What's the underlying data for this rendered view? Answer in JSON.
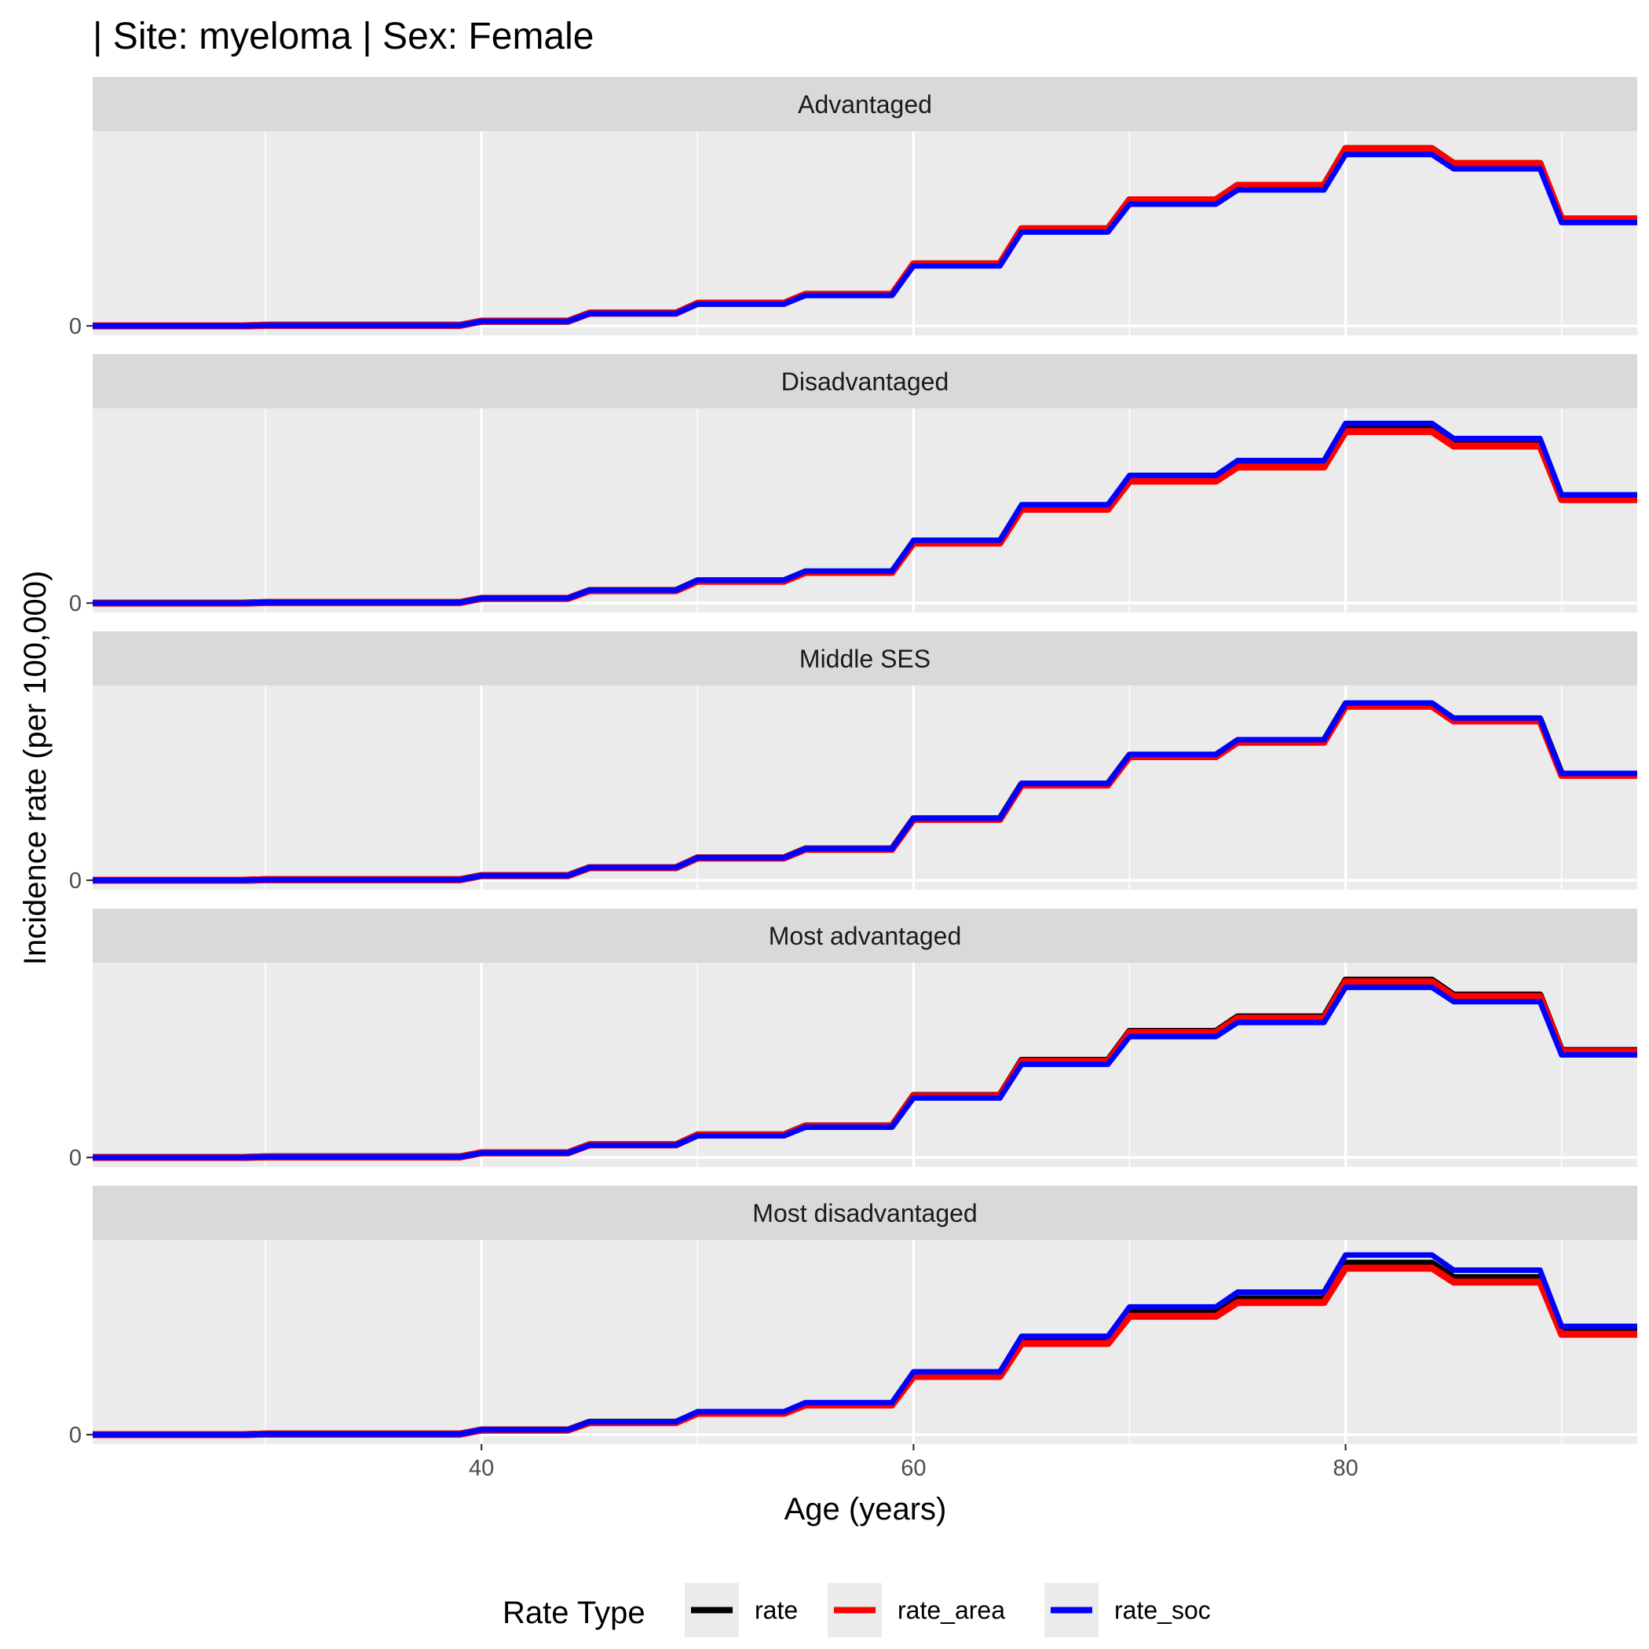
{
  "chart_data": {
    "type": "line",
    "title": "| Site: myeloma | Sex: Female",
    "xlabel": "Age (years)",
    "ylabel": "Incidence rate (per 100,000)",
    "xlim": [
      22,
      93.5
    ],
    "x_ticks": [
      40,
      60,
      80
    ],
    "x_tick_labels": [
      "40",
      "60",
      "80"
    ],
    "y_tick_value": 0,
    "y_tick_label": "0",
    "grid": true,
    "legend": {
      "title": "Rate Type",
      "position": "bottom",
      "entries": [
        {
          "label": "rate",
          "color": "#000000"
        },
        {
          "label": "rate_area",
          "color": "#ff0000"
        },
        {
          "label": "rate_soc",
          "color": "#0000ff"
        }
      ]
    },
    "x": [
      22,
      29,
      30,
      34,
      35,
      39,
      40,
      44,
      45,
      49,
      50,
      54,
      55,
      59,
      60,
      64,
      65,
      69,
      70,
      74,
      75,
      79,
      80,
      84,
      85,
      89,
      90,
      93.5
    ],
    "panels": [
      {
        "label": "Advantaged",
        "series": [
          {
            "name": "rate",
            "values": [
              0,
              0,
              0.3,
              0.3,
              0.3,
              0.3,
              2.6,
              2.6,
              7.1,
              7.1,
              12.6,
              12.6,
              17.6,
              17.6,
              34.6,
              34.6,
              54.2,
              54.2,
              70.4,
              70.4,
              78.5,
              78.5,
              99.0,
              99.0,
              90.7,
              90.7,
              59.7,
              59.7
            ]
          },
          {
            "name": "rate_area",
            "values": [
              0,
              0,
              0.3,
              0.3,
              0.3,
              0.3,
              2.6,
              2.6,
              7.1,
              7.1,
              12.6,
              12.6,
              17.6,
              17.6,
              34.6,
              34.6,
              54.2,
              54.2,
              70.4,
              70.4,
              78.5,
              78.5,
              99.0,
              99.0,
              90.7,
              90.7,
              59.7,
              59.7
            ]
          },
          {
            "name": "rate_soc",
            "values": [
              0,
              0,
              0.3,
              0.3,
              0.3,
              0.3,
              2.5,
              2.5,
              6.9,
              6.9,
              12.2,
              12.2,
              17.0,
              17.0,
              33.5,
              33.5,
              52.4,
              52.4,
              68.0,
              68.0,
              75.9,
              75.9,
              95.7,
              95.7,
              87.7,
              87.7,
              57.7,
              57.7
            ]
          }
        ]
      },
      {
        "label": "Disadvantaged",
        "series": [
          {
            "name": "rate",
            "values": [
              0,
              0,
              0.3,
              0.3,
              0.3,
              0.3,
              2.6,
              2.6,
              7.0,
              7.0,
              12.4,
              12.4,
              17.3,
              17.3,
              34.0,
              34.0,
              53.2,
              53.2,
              69.1,
              69.1,
              77.1,
              77.1,
              97.2,
              97.2,
              89.0,
              89.0,
              58.6,
              58.6
            ]
          },
          {
            "name": "rate_area",
            "values": [
              0,
              0,
              0.3,
              0.3,
              0.3,
              0.3,
              2.6,
              2.6,
              6.9,
              6.9,
              12.2,
              12.2,
              17.1,
              17.1,
              33.5,
              33.5,
              52.4,
              52.4,
              68.1,
              68.1,
              76.0,
              76.0,
              95.8,
              95.8,
              87.7,
              87.7,
              57.8,
              57.8
            ]
          },
          {
            "name": "rate_soc",
            "values": [
              0,
              0,
              0.3,
              0.3,
              0.3,
              0.3,
              2.7,
              2.7,
              7.2,
              7.2,
              12.8,
              12.8,
              17.9,
              17.9,
              35.1,
              35.1,
              54.9,
              54.9,
              71.3,
              71.3,
              79.6,
              79.6,
              100.3,
              100.3,
              91.9,
              91.9,
              60.5,
              60.5
            ]
          }
        ]
      },
      {
        "label": "Middle SES",
        "series": [
          {
            "name": "rate",
            "values": [
              0,
              0,
              0.3,
              0.3,
              0.3,
              0.3,
              2.6,
              2.6,
              7.0,
              7.0,
              12.5,
              12.5,
              17.5,
              17.5,
              34.3,
              34.3,
              53.7,
              53.7,
              69.8,
              69.8,
              77.9,
              77.9,
              98.2,
              98.2,
              89.9,
              89.9,
              59.2,
              59.2
            ]
          },
          {
            "name": "rate_area",
            "values": [
              0,
              0,
              0.3,
              0.3,
              0.3,
              0.3,
              2.6,
              2.6,
              7.0,
              7.0,
              12.4,
              12.4,
              17.3,
              17.3,
              34.0,
              34.0,
              53.2,
              53.2,
              69.1,
              69.1,
              77.1,
              77.1,
              97.2,
              97.2,
              89.0,
              89.0,
              58.6,
              58.6
            ]
          },
          {
            "name": "rate_soc",
            "values": [
              0,
              0,
              0.3,
              0.3,
              0.3,
              0.3,
              2.6,
              2.6,
              7.1,
              7.1,
              12.6,
              12.6,
              17.6,
              17.6,
              34.6,
              34.6,
              54.1,
              54.1,
              70.3,
              70.3,
              78.5,
              78.5,
              99.0,
              99.0,
              90.6,
              90.6,
              59.7,
              59.7
            ]
          }
        ]
      },
      {
        "label": "Most advantaged",
        "series": [
          {
            "name": "rate",
            "values": [
              0,
              0,
              0.3,
              0.3,
              0.3,
              0.3,
              2.6,
              2.6,
              7.1,
              7.1,
              12.6,
              12.6,
              17.6,
              17.6,
              34.6,
              34.6,
              54.2,
              54.2,
              70.4,
              70.4,
              78.5,
              78.5,
              99.0,
              99.0,
              90.7,
              90.7,
              59.7,
              59.7
            ]
          },
          {
            "name": "rate_area",
            "values": [
              0,
              0,
              0.3,
              0.3,
              0.3,
              0.3,
              2.6,
              2.6,
              7.0,
              7.0,
              12.5,
              12.5,
              17.5,
              17.5,
              34.3,
              34.3,
              53.7,
              53.7,
              69.8,
              69.8,
              77.8,
              77.8,
              98.1,
              98.1,
              89.9,
              89.9,
              59.2,
              59.2
            ]
          },
          {
            "name": "rate_soc",
            "values": [
              0,
              0,
              0.3,
              0.3,
              0.3,
              0.3,
              2.5,
              2.5,
              6.8,
              6.8,
              12.1,
              12.1,
              16.9,
              16.9,
              33.2,
              33.2,
              52.0,
              52.0,
              67.5,
              67.5,
              75.4,
              75.4,
              95.0,
              95.0,
              87.0,
              87.0,
              57.3,
              57.3
            ]
          }
        ]
      },
      {
        "label": "Most disadvantaged",
        "series": [
          {
            "name": "rate",
            "values": [
              0,
              0,
              0.3,
              0.3,
              0.3,
              0.3,
              2.6,
              2.6,
              6.9,
              6.9,
              12.2,
              12.2,
              17.0,
              17.0,
              33.5,
              33.5,
              52.4,
              52.4,
              68.0,
              68.0,
              75.9,
              75.9,
              95.7,
              95.7,
              87.7,
              87.7,
              57.7,
              57.7
            ]
          },
          {
            "name": "rate_area",
            "values": [
              0,
              0,
              0.3,
              0.3,
              0.3,
              0.3,
              2.5,
              2.5,
              6.7,
              6.7,
              11.9,
              11.9,
              16.6,
              16.6,
              32.5,
              32.5,
              50.9,
              50.9,
              66.1,
              66.1,
              73.8,
              73.8,
              93.0,
              93.0,
              85.2,
              85.2,
              56.1,
              56.1
            ]
          },
          {
            "name": "rate_soc",
            "values": [
              0,
              0,
              0.3,
              0.3,
              0.3,
              0.3,
              2.7,
              2.7,
              7.2,
              7.2,
              12.8,
              12.8,
              17.9,
              17.9,
              35.1,
              35.1,
              54.9,
              54.9,
              71.3,
              71.3,
              79.6,
              79.6,
              100.3,
              100.3,
              91.9,
              91.9,
              60.5,
              60.5
            ]
          }
        ]
      }
    ]
  }
}
